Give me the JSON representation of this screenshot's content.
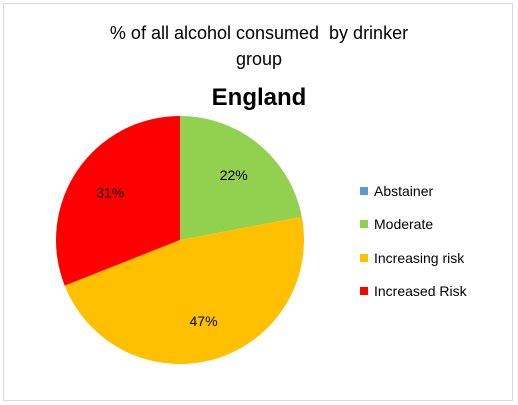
{
  "chart_data": {
    "type": "pie",
    "title_lines": [
      "% of all alcohol consumed  by drinker",
      "group"
    ],
    "subtitle": "England",
    "slices": [
      {
        "label": "Abstainer",
        "value": 0,
        "display": "",
        "color": "#5b9bd5"
      },
      {
        "label": "Moderate",
        "value": 22,
        "display": "22%",
        "color": "#92d050"
      },
      {
        "label": "Increasing risk",
        "value": 47,
        "display": "47%",
        "color": "#ffc000"
      },
      {
        "label": "Increased Risk",
        "value": 31,
        "display": "31%",
        "color": "#ff0000"
      }
    ],
    "legend_position": "right"
  }
}
